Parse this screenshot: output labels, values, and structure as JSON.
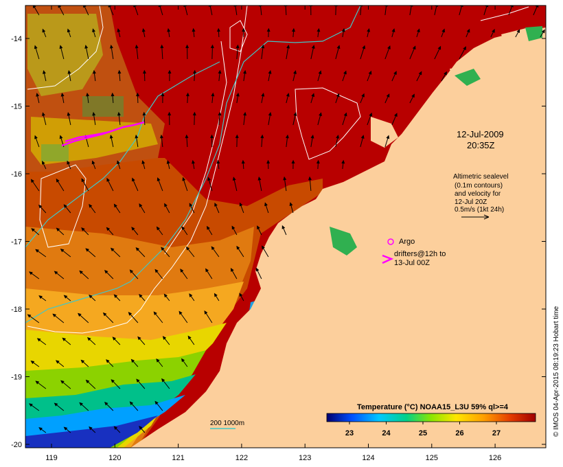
{
  "map": {
    "datetime_line1": "12-Jul-2009",
    "datetime_line2": "20:35Z",
    "velocity_note": [
      "Altimetric sealevel",
      "(0.1m contours)",
      "and velocity for",
      "12-Jul 20Z",
      "0.5m/s (1kt 24h)"
    ],
    "argo_label": "Argo",
    "drifters_label_line1": "drifters@12h to",
    "drifters_label_line2": "13-Jul 00Z",
    "isobath_label": "200  1000m",
    "colorbar_title": "Temperature (°C) NOAA15_L3U 59% ql>=4",
    "colorbar_ticks": [
      "23",
      "24",
      "25",
      "26",
      "27"
    ],
    "credit": "© IMOS 04-Apr-2015 08:19:23 Hobart time",
    "lon_ticks": [
      "119",
      "120",
      "121",
      "122",
      "123",
      "124",
      "125",
      "126"
    ],
    "lat_ticks": [
      "-14",
      "-15",
      "-16",
      "-17",
      "-18",
      "-19",
      "-20"
    ],
    "colors": {
      "land": "#fccf9c",
      "argo": "#ff00ff",
      "drifter": "#ff00ff",
      "bathy": "#40c8c8",
      "contour": "#ffffff"
    },
    "colorbar_stops": [
      "#00006e",
      "#0050ff",
      "#00c8ff",
      "#00d08a",
      "#8ce600",
      "#ffe600",
      "#ffa000",
      "#e43c00",
      "#a00000"
    ]
  }
}
